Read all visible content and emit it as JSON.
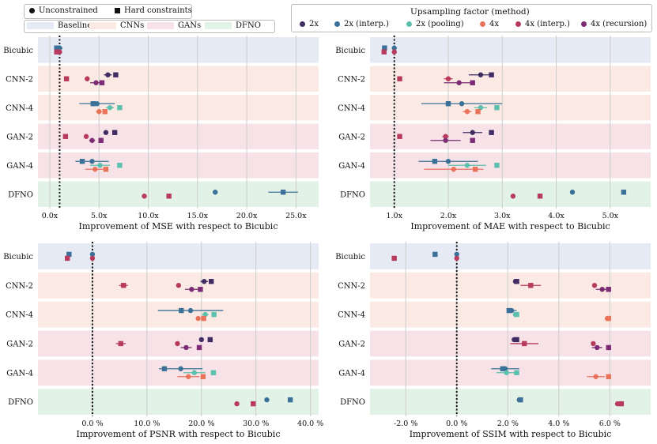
{
  "legend_shape": {
    "items": [
      {
        "label": "Unconstrained",
        "shape": "circle"
      },
      {
        "label": "Hard constraints",
        "shape": "square"
      }
    ]
  },
  "legend_groups": {
    "items": [
      {
        "label": "Baseline",
        "color": "#e6eaf5"
      },
      {
        "label": "CNNs",
        "color": "#fbeae3"
      },
      {
        "label": "GANs",
        "color": "#f7e3e7"
      },
      {
        "label": "DFNO",
        "color": "#e3f2e7"
      }
    ]
  },
  "legend_methods": {
    "title": "Upsampling factor (method)",
    "items": [
      {
        "label": "2x",
        "color": "#3f2d63"
      },
      {
        "label": "2x (interp.)",
        "color": "#3b7198"
      },
      {
        "label": "2x (pooling)",
        "color": "#5cc0ae"
      },
      {
        "label": "4x",
        "color": "#e8735a"
      },
      {
        "label": "4x (interp.)",
        "color": "#b83b5e"
      },
      {
        "label": "4x (recursion)",
        "color": "#7b2c74"
      }
    ]
  },
  "chart_data": [
    {
      "type": "scatter",
      "xlabel": "Improvement of MSE with respect to Bicubic",
      "xlim": [
        -1.2,
        27.3
      ],
      "xticks": [
        0,
        5,
        10,
        15,
        20,
        25
      ],
      "xtick_labels": [
        "0.0x",
        "5.0x",
        "10.0x",
        "15.0x",
        "20.0x",
        "25.0x"
      ],
      "reference": 1,
      "rows": [
        "Bicubic",
        "CNN-2",
        "CNN-4",
        "GAN-2",
        "GAN-4",
        "DFNO"
      ],
      "points": [
        {
          "row": 0,
          "series": 1,
          "shape": "circle",
          "x": 1.0,
          "xerr": 0.3
        },
        {
          "row": 0,
          "series": 1,
          "shape": "square",
          "x": 0.7
        },
        {
          "row": 0,
          "series": 4,
          "shape": "circle",
          "x": 1.0
        },
        {
          "row": 0,
          "series": 4,
          "shape": "square",
          "x": 0.7
        },
        {
          "row": 1,
          "series": 0,
          "shape": "circle",
          "x": 5.9,
          "xerr": 0.4
        },
        {
          "row": 1,
          "series": 0,
          "shape": "square",
          "x": 6.7
        },
        {
          "row": 1,
          "series": 4,
          "shape": "circle",
          "x": 3.8
        },
        {
          "row": 1,
          "series": 4,
          "shape": "square",
          "x": 1.7
        },
        {
          "row": 1,
          "series": 5,
          "shape": "circle",
          "x": 4.7,
          "xerr": 0.6
        },
        {
          "row": 1,
          "series": 5,
          "shape": "square",
          "x": 5.3
        },
        {
          "row": 2,
          "series": 1,
          "shape": "circle",
          "x": 4.8,
          "xerr": 1.8
        },
        {
          "row": 2,
          "series": 1,
          "shape": "square",
          "x": 4.4
        },
        {
          "row": 2,
          "series": 2,
          "shape": "circle",
          "x": 6.1,
          "xerr": 0.4
        },
        {
          "row": 2,
          "series": 2,
          "shape": "square",
          "x": 7.1
        },
        {
          "row": 2,
          "series": 3,
          "shape": "circle",
          "x": 5.0,
          "xerr": 0.3
        },
        {
          "row": 2,
          "series": 3,
          "shape": "square",
          "x": 5.6
        },
        {
          "row": 3,
          "series": 0,
          "shape": "circle",
          "x": 5.7
        },
        {
          "row": 3,
          "series": 0,
          "shape": "square",
          "x": 6.6
        },
        {
          "row": 3,
          "series": 4,
          "shape": "circle",
          "x": 3.7
        },
        {
          "row": 3,
          "series": 4,
          "shape": "square",
          "x": 1.6
        },
        {
          "row": 3,
          "series": 5,
          "shape": "circle",
          "x": 4.3,
          "xerr": 0.3
        },
        {
          "row": 3,
          "series": 5,
          "shape": "square",
          "x": 5.2
        },
        {
          "row": 4,
          "series": 1,
          "shape": "circle",
          "x": 4.3,
          "xerr": 1.7
        },
        {
          "row": 4,
          "series": 1,
          "shape": "square",
          "x": 3.3
        },
        {
          "row": 4,
          "series": 2,
          "shape": "circle",
          "x": 5.1,
          "xerr": 1.0
        },
        {
          "row": 4,
          "series": 2,
          "shape": "square",
          "x": 7.1
        },
        {
          "row": 4,
          "series": 3,
          "shape": "circle",
          "x": 4.6,
          "xerr": 1.0
        },
        {
          "row": 4,
          "series": 3,
          "shape": "square",
          "x": 5.7
        },
        {
          "row": 5,
          "series": 1,
          "shape": "circle",
          "x": 16.8
        },
        {
          "row": 5,
          "series": 1,
          "shape": "square",
          "x": 23.7,
          "xerr": 1.5
        },
        {
          "row": 5,
          "series": 4,
          "shape": "circle",
          "x": 9.6
        },
        {
          "row": 5,
          "series": 4,
          "shape": "square",
          "x": 12.1
        }
      ]
    },
    {
      "type": "scatter",
      "xlabel": "Improvement of MAE with respect to Bicubic",
      "xlim": [
        0.55,
        5.75
      ],
      "xticks": [
        1,
        2,
        3,
        4,
        5
      ],
      "xtick_labels": [
        "1.0x",
        "2.0x",
        "3.0x",
        "4.0x",
        "5.0x"
      ],
      "reference": 1,
      "rows": [
        "Bicubic",
        "CNN-2",
        "CNN-4",
        "GAN-2",
        "GAN-4",
        "DFNO"
      ],
      "points": [
        {
          "row": 0,
          "series": 1,
          "shape": "circle",
          "x": 1.0
        },
        {
          "row": 0,
          "series": 1,
          "shape": "square",
          "x": 0.82
        },
        {
          "row": 0,
          "series": 4,
          "shape": "circle",
          "x": 1.0
        },
        {
          "row": 0,
          "series": 4,
          "shape": "square",
          "x": 0.81
        },
        {
          "row": 1,
          "series": 0,
          "shape": "circle",
          "x": 2.6,
          "xerr": 0.22
        },
        {
          "row": 1,
          "series": 0,
          "shape": "square",
          "x": 2.8
        },
        {
          "row": 1,
          "series": 4,
          "shape": "circle",
          "x": 2.0,
          "xerr": 0.08
        },
        {
          "row": 1,
          "series": 4,
          "shape": "square",
          "x": 1.1
        },
        {
          "row": 1,
          "series": 5,
          "shape": "circle",
          "x": 2.2,
          "xerr": 0.28
        },
        {
          "row": 1,
          "series": 5,
          "shape": "square",
          "x": 2.45
        },
        {
          "row": 2,
          "series": 1,
          "shape": "circle",
          "x": 2.25,
          "xerr": 0.75
        },
        {
          "row": 2,
          "series": 1,
          "shape": "square",
          "x": 2.0
        },
        {
          "row": 2,
          "series": 2,
          "shape": "circle",
          "x": 2.6,
          "xerr": 0.12
        },
        {
          "row": 2,
          "series": 2,
          "shape": "square",
          "x": 2.9
        },
        {
          "row": 2,
          "series": 3,
          "shape": "circle",
          "x": 2.35,
          "xerr": 0.08
        },
        {
          "row": 2,
          "series": 3,
          "shape": "square",
          "x": 2.55
        },
        {
          "row": 3,
          "series": 0,
          "shape": "circle",
          "x": 2.45,
          "xerr": 0.18
        },
        {
          "row": 3,
          "series": 0,
          "shape": "square",
          "x": 2.8
        },
        {
          "row": 3,
          "series": 4,
          "shape": "circle",
          "x": 1.95,
          "xerr": 0.06
        },
        {
          "row": 3,
          "series": 4,
          "shape": "square",
          "x": 1.1
        },
        {
          "row": 3,
          "series": 5,
          "shape": "circle",
          "x": 1.95,
          "xerr": 0.28
        },
        {
          "row": 3,
          "series": 5,
          "shape": "square",
          "x": 2.45
        },
        {
          "row": 4,
          "series": 1,
          "shape": "circle",
          "x": 2.0,
          "xerr": 0.55
        },
        {
          "row": 4,
          "series": 1,
          "shape": "square",
          "x": 1.75
        },
        {
          "row": 4,
          "series": 2,
          "shape": "circle",
          "x": 2.35,
          "xerr": 0.35
        },
        {
          "row": 4,
          "series": 2,
          "shape": "square",
          "x": 2.9
        },
        {
          "row": 4,
          "series": 3,
          "shape": "circle",
          "x": 2.1,
          "xerr": 0.55
        },
        {
          "row": 4,
          "series": 3,
          "shape": "square",
          "x": 2.5
        },
        {
          "row": 5,
          "series": 1,
          "shape": "circle",
          "x": 4.3
        },
        {
          "row": 5,
          "series": 1,
          "shape": "square",
          "x": 5.25
        },
        {
          "row": 5,
          "series": 4,
          "shape": "circle",
          "x": 3.2
        },
        {
          "row": 5,
          "series": 4,
          "shape": "square",
          "x": 3.7
        }
      ]
    },
    {
      "type": "scatter",
      "xlabel": "Improvement of PSNR with respect to Bicubic",
      "xlim": [
        -10.0,
        41.5
      ],
      "xticks": [
        0,
        10,
        20,
        30,
        40
      ],
      "xtick_labels": [
        "0.0 %",
        "10.0 %",
        "20.0 %",
        "30.0 %",
        "40.0 %"
      ],
      "reference": 0,
      "rows": [
        "Bicubic",
        "CNN-2",
        "CNN-4",
        "GAN-2",
        "GAN-4",
        "DFNO"
      ],
      "points": [
        {
          "row": 0,
          "series": 1,
          "shape": "circle",
          "x": 0.0
        },
        {
          "row": 0,
          "series": 1,
          "shape": "square",
          "x": -4.3
        },
        {
          "row": 0,
          "series": 4,
          "shape": "circle",
          "x": 0.0
        },
        {
          "row": 0,
          "series": 4,
          "shape": "square",
          "x": -4.6
        },
        {
          "row": 1,
          "series": 0,
          "shape": "circle",
          "x": 20.5,
          "xerr": 0.7
        },
        {
          "row": 1,
          "series": 0,
          "shape": "square",
          "x": 21.8
        },
        {
          "row": 1,
          "series": 4,
          "shape": "circle",
          "x": 15.8
        },
        {
          "row": 1,
          "series": 4,
          "shape": "square",
          "x": 5.7,
          "xerr": 0.8
        },
        {
          "row": 1,
          "series": 5,
          "shape": "circle",
          "x": 18.2,
          "xerr": 1.2
        },
        {
          "row": 1,
          "series": 5,
          "shape": "square",
          "x": 19.8
        },
        {
          "row": 2,
          "series": 1,
          "shape": "circle",
          "x": 18.0,
          "xerr": 6.0
        },
        {
          "row": 2,
          "series": 1,
          "shape": "square",
          "x": 16.3
        },
        {
          "row": 2,
          "series": 2,
          "shape": "circle",
          "x": 20.7,
          "xerr": 0.6
        },
        {
          "row": 2,
          "series": 2,
          "shape": "square",
          "x": 22.3
        },
        {
          "row": 2,
          "series": 3,
          "shape": "circle",
          "x": 19.4,
          "xerr": 0.3
        },
        {
          "row": 2,
          "series": 3,
          "shape": "square",
          "x": 20.4
        },
        {
          "row": 3,
          "series": 0,
          "shape": "circle",
          "x": 20.0
        },
        {
          "row": 3,
          "series": 0,
          "shape": "square",
          "x": 21.6
        },
        {
          "row": 3,
          "series": 4,
          "shape": "circle",
          "x": 15.6
        },
        {
          "row": 3,
          "series": 4,
          "shape": "square",
          "x": 5.2,
          "xerr": 0.9
        },
        {
          "row": 3,
          "series": 5,
          "shape": "circle",
          "x": 17.2,
          "xerr": 1.0
        },
        {
          "row": 3,
          "series": 5,
          "shape": "square",
          "x": 19.6
        },
        {
          "row": 4,
          "series": 1,
          "shape": "circle",
          "x": 16.2,
          "xerr": 4.0
        },
        {
          "row": 4,
          "series": 1,
          "shape": "square",
          "x": 13.2
        },
        {
          "row": 4,
          "series": 2,
          "shape": "circle",
          "x": 18.7,
          "xerr": 2.0
        },
        {
          "row": 4,
          "series": 2,
          "shape": "square",
          "x": 22.2
        },
        {
          "row": 4,
          "series": 3,
          "shape": "circle",
          "x": 17.6,
          "xerr": 2.0
        },
        {
          "row": 4,
          "series": 3,
          "shape": "square",
          "x": 20.3
        },
        {
          "row": 5,
          "series": 1,
          "shape": "circle",
          "x": 32.0
        },
        {
          "row": 5,
          "series": 1,
          "shape": "square",
          "x": 36.3
        },
        {
          "row": 5,
          "series": 4,
          "shape": "circle",
          "x": 26.5
        },
        {
          "row": 5,
          "series": 4,
          "shape": "square",
          "x": 29.5
        }
      ]
    },
    {
      "type": "scatter",
      "xlabel": "Improvement of SSIM with respect to Bicubic",
      "xlim": [
        -3.4,
        7.6
      ],
      "xticks": [
        -2,
        0,
        2,
        4,
        6
      ],
      "xtick_labels": [
        "-2.0 %",
        "0.0 %",
        "2.0 %",
        "4.0 %",
        "6.0 %"
      ],
      "reference": 0,
      "rows": [
        "Bicubic",
        "CNN-2",
        "CNN-4",
        "GAN-2",
        "GAN-4",
        "DFNO"
      ],
      "points": [
        {
          "row": 0,
          "series": 1,
          "shape": "circle",
          "x": 0.0
        },
        {
          "row": 0,
          "series": 1,
          "shape": "square",
          "x": -0.85
        },
        {
          "row": 0,
          "series": 4,
          "shape": "circle",
          "x": 0.0
        },
        {
          "row": 0,
          "series": 4,
          "shape": "square",
          "x": -2.45
        },
        {
          "row": 1,
          "series": 0,
          "shape": "circle",
          "x": 2.3
        },
        {
          "row": 1,
          "series": 0,
          "shape": "square",
          "x": 2.35
        },
        {
          "row": 1,
          "series": 4,
          "shape": "circle",
          "x": 5.4
        },
        {
          "row": 1,
          "series": 4,
          "shape": "square",
          "x": 2.9,
          "xerr": 0.4
        },
        {
          "row": 1,
          "series": 5,
          "shape": "circle",
          "x": 5.7,
          "xerr": 0.25
        },
        {
          "row": 1,
          "series": 5,
          "shape": "square",
          "x": 5.95
        },
        {
          "row": 2,
          "series": 1,
          "shape": "circle",
          "x": 2.15,
          "xerr": 0.2
        },
        {
          "row": 2,
          "series": 1,
          "shape": "square",
          "x": 2.05
        },
        {
          "row": 2,
          "series": 2,
          "shape": "circle",
          "x": 2.3
        },
        {
          "row": 2,
          "series": 2,
          "shape": "square",
          "x": 2.35
        },
        {
          "row": 2,
          "series": 3,
          "shape": "circle",
          "x": 5.9
        },
        {
          "row": 2,
          "series": 3,
          "shape": "square",
          "x": 5.95
        },
        {
          "row": 3,
          "series": 0,
          "shape": "circle",
          "x": 2.25
        },
        {
          "row": 3,
          "series": 0,
          "shape": "square",
          "x": 2.35
        },
        {
          "row": 3,
          "series": 4,
          "shape": "circle",
          "x": 5.35
        },
        {
          "row": 3,
          "series": 4,
          "shape": "square",
          "x": 2.65,
          "xerr": 0.55
        },
        {
          "row": 3,
          "series": 5,
          "shape": "circle",
          "x": 5.5,
          "xerr": 0.2
        },
        {
          "row": 3,
          "series": 5,
          "shape": "square",
          "x": 5.95
        },
        {
          "row": 4,
          "series": 1,
          "shape": "circle",
          "x": 1.9,
          "xerr": 0.55
        },
        {
          "row": 4,
          "series": 1,
          "shape": "square",
          "x": 1.8
        },
        {
          "row": 4,
          "series": 2,
          "shape": "circle",
          "x": 1.95,
          "xerr": 0.4
        },
        {
          "row": 4,
          "series": 2,
          "shape": "square",
          "x": 2.35
        },
        {
          "row": 4,
          "series": 3,
          "shape": "circle",
          "x": 5.45,
          "xerr": 0.35
        },
        {
          "row": 4,
          "series": 3,
          "shape": "square",
          "x": 5.95
        },
        {
          "row": 5,
          "series": 1,
          "shape": "circle",
          "x": 2.45
        },
        {
          "row": 5,
          "series": 1,
          "shape": "square",
          "x": 2.5
        },
        {
          "row": 5,
          "series": 4,
          "shape": "circle",
          "x": 6.3
        },
        {
          "row": 5,
          "series": 4,
          "shape": "square",
          "x": 6.45
        }
      ]
    }
  ]
}
